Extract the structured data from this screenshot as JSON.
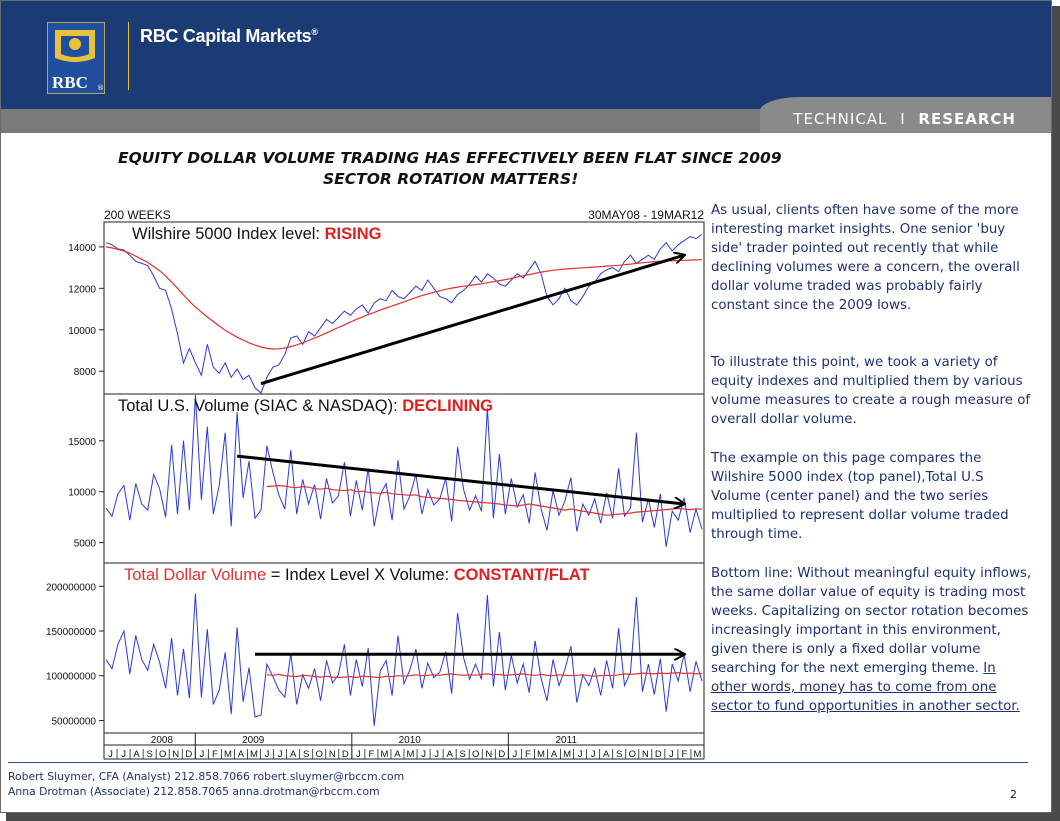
{
  "header": {
    "brand_name": "RBC Capital Markets",
    "brand_mark": "®",
    "logo_text": "RBC",
    "logo_mark": "®",
    "section_prefix": "TECHNICAL",
    "separator": "I",
    "section_suffix": "RESEARCH",
    "colors": {
      "header_bg": "#1b3b74",
      "subbar_bg": "#7a7a7a",
      "accent_gold": "#e9c23c"
    }
  },
  "title": {
    "line1": "EQUITY DOLLAR VOLUME TRADING HAS EFFECTIVELY BEEN FLAT SINCE 2009",
    "line2": "SECTOR ROTATION MATTERS!"
  },
  "chart_meta": {
    "period_label": "200 WEEKS",
    "date_range": "30MAY08 - 19MAR12"
  },
  "chart_data": [
    {
      "type": "line",
      "panel": "top",
      "label_prefix": "Wilshire 5000 Index level: ",
      "label_status": "RISING",
      "yticks": [
        8000,
        10000,
        12000,
        14000
      ],
      "ylim": [
        6900,
        15200
      ],
      "series": [
        {
          "name": "",
          "color": "#2a3ad8",
          "values": [
            14200,
            14100,
            13900,
            13850,
            13600,
            13300,
            13200,
            13100,
            12600,
            12000,
            11900,
            11000,
            9800,
            8400,
            9100,
            8400,
            7800,
            9300,
            8200,
            7900,
            8400,
            7700,
            8100,
            7600,
            7800,
            7200,
            6950,
            7700,
            8200,
            8300,
            8800,
            9600,
            9700,
            9300,
            9900,
            9700,
            10100,
            10500,
            10300,
            10600,
            10900,
            10700,
            11000,
            11200,
            10800,
            11300,
            11500,
            11400,
            11900,
            11600,
            11500,
            11800,
            12100,
            11900,
            12400,
            12000,
            11600,
            11500,
            11300,
            11700,
            11900,
            12200,
            12600,
            12300,
            12700,
            12500,
            12200,
            12100,
            12400,
            12700,
            12500,
            12900,
            13300,
            12700,
            11600,
            11200,
            11500,
            12000,
            11400,
            11200,
            11600,
            12100,
            12300,
            12700,
            12900,
            13000,
            12800,
            13300,
            13600,
            13200,
            13400,
            13600,
            13400,
            13900,
            14200,
            13800,
            14100,
            14300,
            14500,
            14400,
            14600
          ]
        },
        {
          "name": "",
          "color": "#e23030",
          "values": [
            14000,
            13950,
            13880,
            13800,
            13700,
            13550,
            13400,
            13250,
            13050,
            12850,
            12600,
            12300,
            12000,
            11680,
            11380,
            11100,
            10850,
            10620,
            10400,
            10180,
            9980,
            9800,
            9640,
            9500,
            9370,
            9260,
            9170,
            9100,
            9070,
            9080,
            9120,
            9190,
            9270,
            9370,
            9480,
            9600,
            9720,
            9850,
            9980,
            10110,
            10240,
            10370,
            10500,
            10620,
            10730,
            10840,
            10950,
            11050,
            11150,
            11250,
            11350,
            11450,
            11550,
            11650,
            11730,
            11810,
            11880,
            11950,
            12010,
            12060,
            12100,
            12140,
            12180,
            12220,
            12270,
            12320,
            12370,
            12420,
            12480,
            12540,
            12600,
            12660,
            12720,
            12780,
            12830,
            12870,
            12900,
            12930,
            12950,
            12970,
            12990,
            13010,
            13030,
            13050,
            13070,
            13090,
            13110,
            13140,
            13170,
            13200,
            13230,
            13260,
            13290,
            13310,
            13320,
            13330,
            13340,
            13350,
            13360,
            13370,
            13380
          ]
        }
      ],
      "trend_arrow": {
        "from": [
          26,
          7400
        ],
        "to": [
          97,
          13600
        ]
      }
    },
    {
      "type": "line",
      "panel": "middle",
      "label_prefix": "Total U.S. Volume (SIAC & NASDAQ): ",
      "label_status": "DECLINING",
      "yticks": [
        5000,
        10000,
        15000
      ],
      "ylim": [
        3000,
        19600
      ],
      "series": [
        {
          "name": "",
          "color": "#2a3ad8",
          "values": [
            8400,
            7600,
            9800,
            10600,
            7200,
            10800,
            8800,
            8200,
            11700,
            10300,
            7500,
            14600,
            7800,
            15000,
            8200,
            19500,
            9200,
            16400,
            7800,
            10600,
            15800,
            6600,
            17800,
            9400,
            13000,
            7400,
            8200,
            14500,
            11900,
            9700,
            8300,
            14100,
            7800,
            11200,
            8800,
            10700,
            7300,
            11300,
            8900,
            9600,
            12900,
            7600,
            11100,
            8200,
            12300,
            6600,
            9700,
            10800,
            7200,
            13100,
            8300,
            9600,
            11700,
            7800,
            10200,
            8700,
            9300,
            11300,
            7100,
            14400,
            10200,
            8200,
            9600,
            8100,
            18200,
            7400,
            13700,
            7800,
            11300,
            8500,
            9700,
            6900,
            11900,
            8300,
            6200,
            10100,
            7700,
            9100,
            11400,
            6100,
            8800,
            7700,
            9300,
            6900,
            9900,
            7400,
            12300,
            7600,
            8400,
            15800,
            7000,
            9300,
            6500,
            9800,
            4600,
            8100,
            7200,
            9400,
            6000,
            8300,
            6300
          ]
        },
        {
          "name": "",
          "color": "#e23030",
          "values": [
            null,
            null,
            null,
            null,
            null,
            null,
            null,
            null,
            null,
            null,
            null,
            null,
            null,
            null,
            null,
            null,
            null,
            null,
            null,
            null,
            null,
            null,
            null,
            null,
            null,
            null,
            null,
            10500,
            10550,
            10600,
            10550,
            10450,
            10400,
            10500,
            10450,
            10300,
            10250,
            10350,
            10200,
            10150,
            10100,
            10200,
            10000,
            10050,
            9950,
            9900,
            9850,
            9950,
            9800,
            9750,
            9700,
            9650,
            9700,
            9500,
            9450,
            9400,
            9350,
            9300,
            9250,
            9150,
            9100,
            9050,
            9000,
            8950,
            8900,
            8850,
            8800,
            8700,
            8650,
            8600,
            8700,
            8800,
            8700,
            8600,
            8500,
            8400,
            8300,
            8200,
            8300,
            8200,
            8100,
            8000,
            7900,
            7800,
            7700,
            7750,
            7800,
            7850,
            7900,
            8000,
            8050,
            8100,
            8150,
            8200,
            8250,
            8300,
            8350,
            8300,
            8250,
            8300,
            8300
          ]
        }
      ],
      "trend_arrow": {
        "from": [
          22,
          13500
        ],
        "to": [
          97,
          8800
        ]
      }
    },
    {
      "type": "line",
      "panel": "bottom",
      "label_prefix": "Total Dollar Volume",
      "label_mid": " = Index Level X Volume: ",
      "label_status": "CONSTANT/FLAT",
      "yticks": [
        50000000,
        100000000,
        150000000,
        200000000
      ],
      "ylim": [
        36000000,
        226000000
      ],
      "xlabels": [
        "2008",
        "2009",
        "2010",
        "2011"
      ],
      "months": [
        "J",
        "J",
        "A",
        "S",
        "O",
        "N",
        "D",
        "J",
        "F",
        "M",
        "A",
        "M",
        "J",
        "J",
        "A",
        "S",
        "O",
        "N",
        "D",
        "J",
        "F",
        "M",
        "A",
        "M",
        "J",
        "J",
        "A",
        "S",
        "O",
        "N",
        "D",
        "J",
        "F",
        "M",
        "A",
        "M",
        "J",
        "J",
        "A",
        "S",
        "O",
        "N",
        "D",
        "J",
        "F",
        "M"
      ],
      "series": [
        {
          "name": "",
          "color": "#2a3ad8",
          "values": [
            118000000,
            108000000,
            135000000,
            150000000,
            102000000,
            145000000,
            118000000,
            106000000,
            135000000,
            115000000,
            86000000,
            142000000,
            78000000,
            130000000,
            75000000,
            192000000,
            76000000,
            152000000,
            68000000,
            84000000,
            126000000,
            57000000,
            154000000,
            71000000,
            109000000,
            54000000,
            56000000,
            113000000,
            99000000,
            84000000,
            76000000,
            125000000,
            68000000,
            101000000,
            86000000,
            108000000,
            72000000,
            117000000,
            92000000,
            101000000,
            135000000,
            78000000,
            118000000,
            88000000,
            131000000,
            44000000,
            105000000,
            117000000,
            78000000,
            145000000,
            91000000,
            107000000,
            130000000,
            86000000,
            114000000,
            98000000,
            104000000,
            127000000,
            80000000,
            170000000,
            120000000,
            96000000,
            113000000,
            96000000,
            190000000,
            88000000,
            149000000,
            84000000,
            123000000,
            92000000,
            113000000,
            81000000,
            139000000,
            97000000,
            72000000,
            118000000,
            89000000,
            107000000,
            133000000,
            70000000,
            101000000,
            89000000,
            108000000,
            78000000,
            117000000,
            86000000,
            153000000,
            89000000,
            104000000,
            188000000,
            82000000,
            113000000,
            79000000,
            119000000,
            60000000,
            113000000,
            94000000,
            124000000,
            82000000,
            116000000,
            94000000
          ]
        },
        {
          "name": "",
          "color": "#e23030",
          "values": [
            null,
            null,
            null,
            null,
            null,
            null,
            null,
            null,
            null,
            null,
            null,
            null,
            null,
            null,
            null,
            null,
            null,
            null,
            null,
            null,
            null,
            null,
            null,
            null,
            null,
            null,
            null,
            101000000,
            100500000,
            101500000,
            100000000,
            99500000,
            99000000,
            100500000,
            100000000,
            99000000,
            98500000,
            99500000,
            98500000,
            98000000,
            98500000,
            99000000,
            98000000,
            99500000,
            99000000,
            98500000,
            98000000,
            99500000,
            99000000,
            100000000,
            99500000,
            100000000,
            101000000,
            100000000,
            100500000,
            101000000,
            100500000,
            101500000,
            102000000,
            101000000,
            100500000,
            101000000,
            100500000,
            101500000,
            102000000,
            101000000,
            101500000,
            100500000,
            101000000,
            101500000,
            102000000,
            101000000,
            100500000,
            101500000,
            100500000,
            100000000,
            101000000,
            100500000,
            100000000,
            100500000,
            101000000,
            100000000,
            99500000,
            100000000,
            100500000,
            100000000,
            101000000,
            102000000,
            101500000,
            102000000,
            103000000,
            102500000,
            102000000,
            103000000,
            102500000,
            103000000,
            103500000,
            102500000,
            103000000,
            102000000,
            102500000
          ]
        }
      ],
      "trend_arrow": {
        "from": [
          25,
          124000000
        ],
        "to": [
          97,
          124000000
        ]
      }
    }
  ],
  "paragraphs": [
    "As usual, clients often have some of the more interesting market insights.  One senior 'buy side' trader pointed out recently that while declining volumes were a concern, the overall dollar volume traded was probably fairly constant since the 2009 lows.",
    "To illustrate this point, we took a variety of equity indexes and multiplied them by various volume measures to create a rough measure of overall dollar volume.",
    "The example on this page compares the Wilshire 5000 index (top panel),Total U.S Volume (center panel) and the two series multiplied to represent dollar volume traded through time."
  ],
  "bottom_line": {
    "text": "Bottom line: Without meaningful equity inflows, the same dollar value of equity is trading most weeks. Capitalizing on sector rotation becomes increasingly important in this environment, given there is only a fixed dollar volume searching for the next emerging theme. ",
    "underlined": "In other words, money has to come from one sector to fund opportunities in another sector."
  },
  "footer": {
    "credit1": "Robert Sluymer, CFA (Analyst) 212.858.7066 robert.sluymer@rbccm.com",
    "credit2": "Anna Drotman (Associate) 212.858.7065 anna.drotman@rbccm.com",
    "page_number": "2"
  }
}
